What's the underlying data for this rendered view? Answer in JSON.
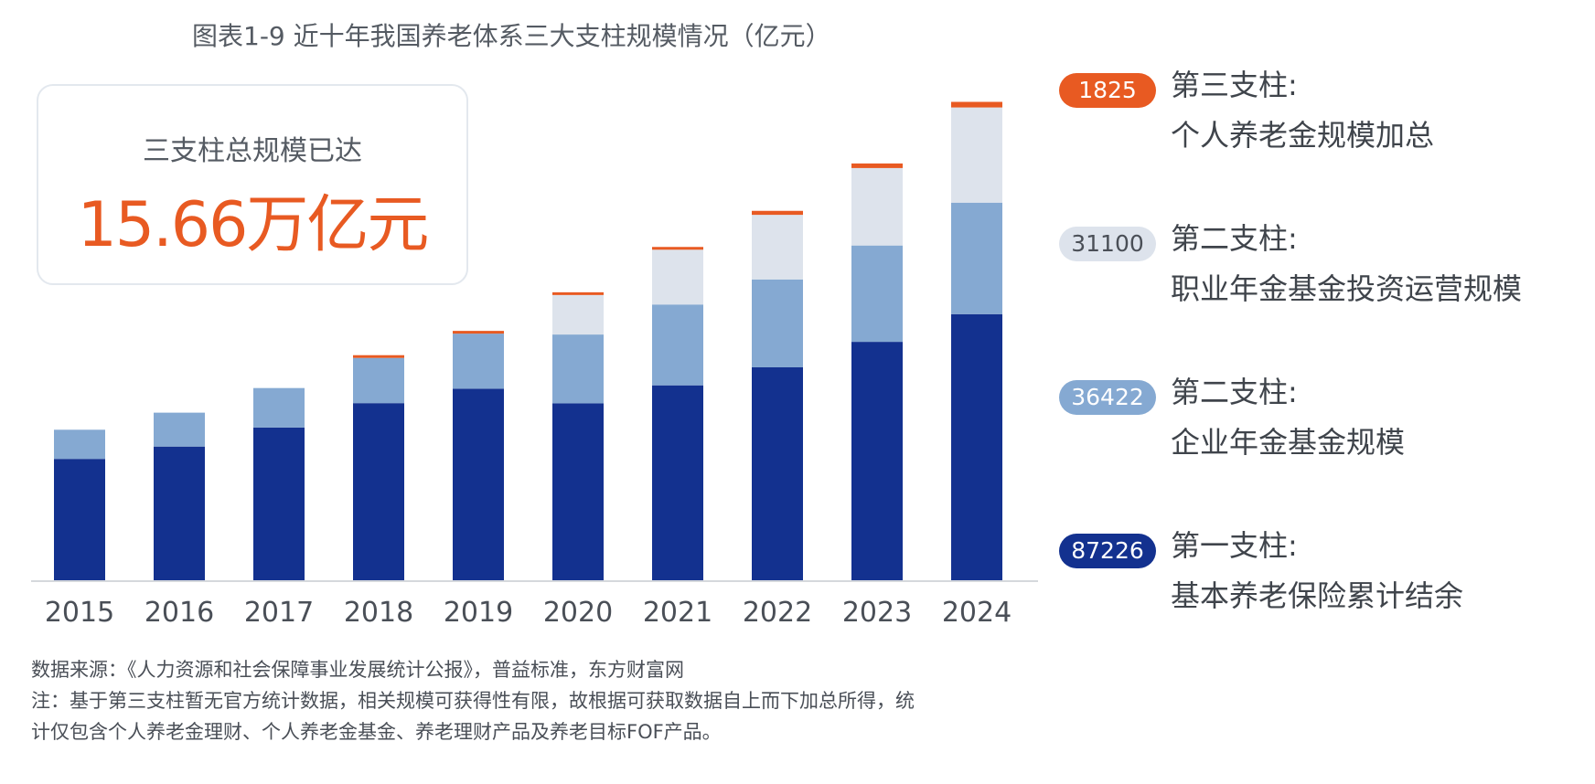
{
  "chart_data": {
    "type": "bar",
    "stacked": true,
    "title": "图表1-9 近十年我国养老体系三大支柱规模情况（亿元）",
    "categories": [
      "2015",
      "2016",
      "2017",
      "2018",
      "2019",
      "2020",
      "2021",
      "2022",
      "2023",
      "2024"
    ],
    "series": [
      {
        "name": "第一支柱：基本养老保险累计结余",
        "color": "#13318f",
        "values": [
          39937,
          43965,
          50202,
          58152,
          62873,
          58075,
          63970,
          69851,
          78177,
          87226
        ]
      },
      {
        "name": "第二支柱：企业年金基金规模",
        "color": "#85a9d2",
        "values": [
          9526,
          11075,
          12880,
          14770,
          17985,
          22497,
          26406,
          28717,
          31475,
          36422
        ]
      },
      {
        "name": "第二支柱：职业年金基金投资运营规模",
        "color": "#dde3ec",
        "values": [
          0,
          0,
          0,
          0,
          0,
          12900,
          17900,
          21100,
          25300,
          31100
        ]
      },
      {
        "name": "第三支柱：个人养老金规模加总",
        "color": "#e85a22",
        "values": [
          0,
          0,
          0,
          120,
          220,
          480,
          900,
          1300,
          1500,
          1825
        ]
      }
    ],
    "ylim": [
      0,
      160000
    ],
    "grid": false,
    "legend": "right"
  },
  "summary": {
    "label": "三支柱总规模已达",
    "value": "15.66万亿元"
  },
  "legend": [
    {
      "value": "1825",
      "line1": "第三支柱:",
      "line2": "个人养老金规模加总",
      "color": "#e85a22",
      "text_color": "#ffffff"
    },
    {
      "value": "31100",
      "line1": "第二支柱:",
      "line2": "职业年金基金投资运营规模",
      "color": "#dde3ec",
      "text_color": "#4a4f57"
    },
    {
      "value": "36422",
      "line1": "第二支柱:",
      "line2": "企业年金基金规模",
      "color": "#85a9d2",
      "text_color": "#ffffff"
    },
    {
      "value": "87226",
      "line1": "第一支柱:",
      "line2": "基本养老保险累计结余",
      "color": "#13318f",
      "text_color": "#ffffff"
    }
  ],
  "notes": {
    "source": "数据来源：《人力资源和社会保障事业发展统计公报》，普益标准，东方财富网",
    "note_line1": "注：基于第三支柱暂无官方统计数据，相关规模可获得性有限，故根据可获取数据自上而下加总所得，统",
    "note_line2": "计仅包含个人养老金理财、个人养老金基金、养老理财产品及养老目标FOF产品。"
  }
}
